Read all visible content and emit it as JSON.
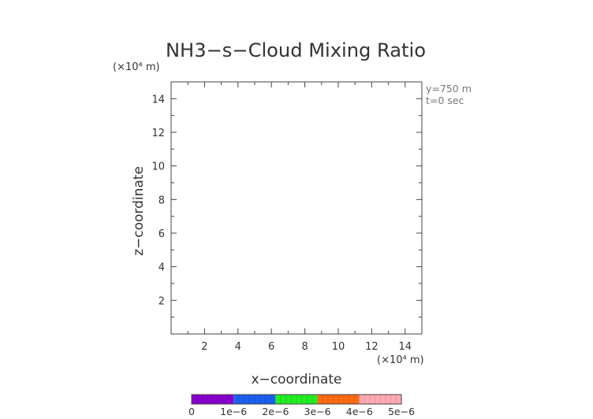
{
  "chart_data": {
    "type": "heatmap",
    "title": "NH3−s−Cloud Mixing Ratio",
    "xlabel": "x−coordinate",
    "ylabel": "z−coordinate",
    "x_unit": "(×10⁴ m)",
    "y_unit": "(×10⁴ m)",
    "xlim": [
      0,
      15
    ],
    "ylim": [
      0,
      15
    ],
    "x_ticks": [
      2,
      4,
      6,
      8,
      10,
      12,
      14
    ],
    "y_ticks": [
      2,
      4,
      6,
      8,
      10,
      12,
      14
    ],
    "grid": false,
    "annotations": [
      "y=750  m",
      "t=0  sec"
    ],
    "values": [],
    "colorbar": {
      "labels": [
        "0",
        "1e−6",
        "2e−6",
        "3e−6",
        "4e−6",
        "5e−6"
      ],
      "values": [
        0,
        1e-06,
        2e-06,
        3e-06,
        4e-06,
        5e-06
      ],
      "colors": [
        "#8800cc",
        "#1a5ff0",
        "#22ee22",
        "#ff6a10",
        "#ffaab4"
      ]
    }
  }
}
